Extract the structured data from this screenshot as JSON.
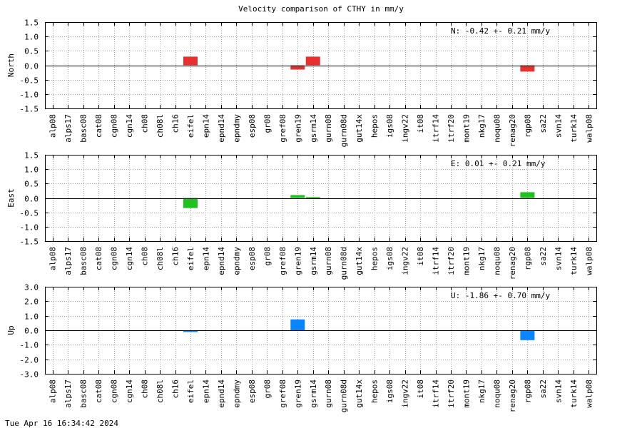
{
  "title": "Velocity comparison of CTHY in mm/y",
  "timestamp": "Tue Apr 16 16:34:42 2024",
  "stations": [
    "alp08",
    "alps17",
    "basc08",
    "cat08",
    "cgn08",
    "cgn14",
    "ch08",
    "ch08l",
    "ch16",
    "eifel",
    "epn14",
    "epnd14",
    "epndmy",
    "esp08",
    "gr08",
    "gref08",
    "gren19",
    "gsrm14",
    "gurn08",
    "gurn08d",
    "gut14x",
    "hepos",
    "igs08",
    "ingv22",
    "it08",
    "itrf14",
    "itrf20",
    "mont19",
    "nkg17",
    "noqu08",
    "renag20",
    "rgp08",
    "sa22",
    "svn14",
    "turk14",
    "walp08"
  ],
  "chart_data": [
    {
      "type": "bar",
      "ylabel": "North",
      "ylim": [
        -1.5,
        1.5
      ],
      "yticks": [
        "1.5",
        "1.0",
        "0.5",
        "0.0",
        "-0.5",
        "-1.0",
        "-1.5"
      ],
      "color": "#e8302f",
      "grid": true,
      "summary": "N:  -0.42 +-  0.21 mm/y",
      "bars": [
        {
          "station": "eifel",
          "value": 0.3
        },
        {
          "station": "gren19",
          "value": -0.15
        },
        {
          "station": "gsrm14",
          "value": 0.3
        },
        {
          "station": "rgp08",
          "value": -0.22
        }
      ]
    },
    {
      "type": "bar",
      "ylabel": "East",
      "ylim": [
        -1.5,
        1.5
      ],
      "yticks": [
        "1.5",
        "1.0",
        "0.5",
        "0.0",
        "-0.5",
        "-1.0",
        "-1.5"
      ],
      "color": "#1ec21e",
      "grid": true,
      "summary": "E:   0.01 +-  0.21 mm/y",
      "bars": [
        {
          "station": "eifel",
          "value": -0.35
        },
        {
          "station": "gren19",
          "value": 0.1
        },
        {
          "station": "gsrm14",
          "value": 0.03
        },
        {
          "station": "rgp08",
          "value": 0.2
        }
      ]
    },
    {
      "type": "bar",
      "ylabel": "Up",
      "ylim": [
        -3.0,
        3.0
      ],
      "yticks": [
        "3.0",
        "2.0",
        "1.0",
        "0.0",
        "-1.0",
        "-2.0",
        "-3.0"
      ],
      "color": "#0a84ff",
      "grid": true,
      "summary": "U:  -1.86 +-  0.70 mm/y",
      "bars": [
        {
          "station": "eifel",
          "value": -0.12
        },
        {
          "station": "gren19",
          "value": 0.75
        },
        {
          "station": "rgp08",
          "value": -0.68
        }
      ]
    }
  ]
}
